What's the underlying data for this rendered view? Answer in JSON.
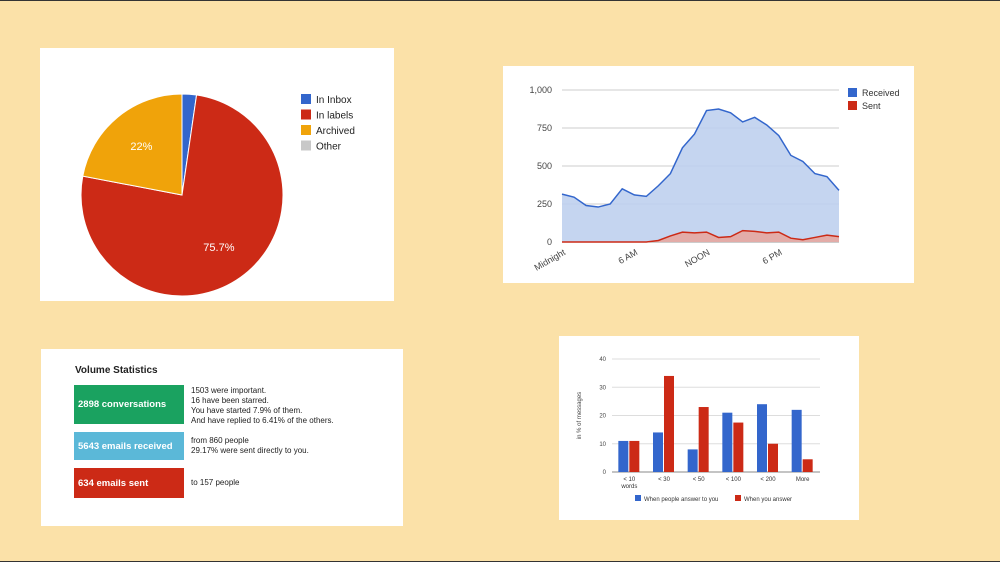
{
  "colors": {
    "background": "#fbe1a8",
    "blue": "#3366cc",
    "red": "#cc2a16",
    "orange": "#f0a30a",
    "gray": "#c8c8c8",
    "green": "#1aa260",
    "light_blue": "#5bb8d8"
  },
  "chart_data": [
    {
      "type": "pie",
      "legend_position": "right",
      "slices": [
        {
          "label": "In Inbox",
          "value": 2.3,
          "color": "#3366cc"
        },
        {
          "label": "In labels",
          "value": 75.7,
          "color": "#cc2a16",
          "data_label": "75.7%"
        },
        {
          "label": "Archived",
          "value": 22,
          "color": "#f0a30a",
          "data_label": "22%"
        },
        {
          "label": "Other",
          "value": 0,
          "color": "#c8c8c8"
        }
      ]
    },
    {
      "type": "area",
      "legend_position": "top-right",
      "ylim": [
        0,
        1000
      ],
      "yticks": [
        "0",
        "250",
        "500",
        "750",
        "1,000"
      ],
      "ytick_values": [
        0,
        250,
        500,
        750,
        1000
      ],
      "xticks": [
        {
          "label": "Midnight",
          "hour": 0
        },
        {
          "label": "6 AM",
          "hour": 6
        },
        {
          "label": "NOON",
          "hour": 12
        },
        {
          "label": "6 PM",
          "hour": 18
        }
      ],
      "hours": [
        0,
        1,
        2,
        3,
        4,
        5,
        6,
        7,
        8,
        9,
        10,
        11,
        12,
        13,
        14,
        15,
        16,
        17,
        18,
        19,
        20,
        21,
        22,
        23
      ],
      "series": [
        {
          "name": "Received",
          "color": "#3366cc",
          "values": [
            315,
            295,
            240,
            230,
            250,
            350,
            310,
            300,
            370,
            450,
            620,
            710,
            865,
            875,
            850,
            790,
            820,
            770,
            700,
            570,
            530,
            450,
            430,
            340
          ]
        },
        {
          "name": "Sent",
          "color": "#cc2a16",
          "values": [
            0,
            0,
            0,
            0,
            0,
            0,
            0,
            0,
            10,
            40,
            65,
            60,
            65,
            30,
            35,
            75,
            70,
            60,
            65,
            25,
            15,
            30,
            45,
            35
          ]
        }
      ]
    },
    {
      "type": "bar",
      "legend_position": "bottom",
      "ylabel": "in % of messages",
      "ylim": [
        0,
        40
      ],
      "yticks": [
        "0",
        "10",
        "20",
        "30",
        "40"
      ],
      "ytick_values": [
        0,
        10,
        20,
        30,
        40
      ],
      "categories": [
        [
          "< 10",
          "words"
        ],
        [
          "< 30"
        ],
        [
          "< 50"
        ],
        [
          "< 100"
        ],
        [
          "< 200"
        ],
        [
          "More"
        ]
      ],
      "series": [
        {
          "name": "When people answer to you",
          "color": "#3366cc",
          "values": [
            11,
            14,
            8,
            21,
            24,
            22
          ]
        },
        {
          "name": "When you answer",
          "color": "#cc2a16",
          "values": [
            11,
            34,
            23,
            17.5,
            10,
            4.5
          ]
        }
      ]
    }
  ],
  "stats": {
    "title": "Volume Statistics",
    "rows": [
      {
        "label": "2898 conversations",
        "color": "#1aa260",
        "lines": [
          "1503 were important.",
          "16 have been starred.",
          "You have started 7.9% of them.",
          "And have replied to 6.41% of the others."
        ]
      },
      {
        "label": "5643 emails received",
        "color": "#5bb8d8",
        "lines": [
          "from 860 people",
          "29.17% were sent directly to you."
        ]
      },
      {
        "label": "634 emails sent",
        "color": "#cc2a16",
        "lines": [
          "to 157 people"
        ]
      }
    ]
  }
}
